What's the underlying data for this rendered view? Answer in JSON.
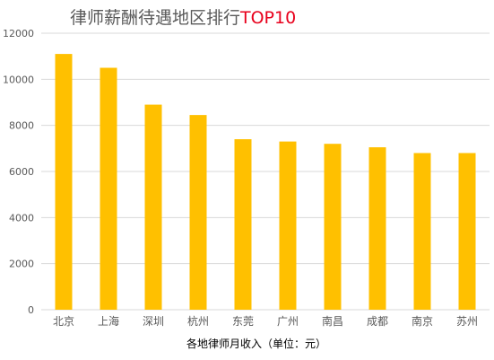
{
  "title_main": "律师薪酬待遇地区排行",
  "title_accent": "TOP10",
  "colors": {
    "bar": "#ffc000",
    "grid": "#d9d9d9",
    "title_accent": "#e8001c",
    "text": "#595959"
  },
  "chart_data": {
    "type": "bar",
    "title": "律师薪酬待遇地区排行TOP10",
    "categories": [
      "北京",
      "上海",
      "深圳",
      "杭州",
      "东莞",
      "广州",
      "南昌",
      "成都",
      "南京",
      "苏州"
    ],
    "values": [
      11100,
      10500,
      8900,
      8450,
      7400,
      7300,
      7200,
      7050,
      6800,
      6800
    ],
    "xlabel": "各地律师月收入（单位：元）",
    "ylabel": "",
    "ylim": [
      0,
      12000
    ],
    "yticks": [
      0,
      2000,
      4000,
      6000,
      8000,
      10000,
      12000
    ],
    "grid": true,
    "legend": "none"
  }
}
